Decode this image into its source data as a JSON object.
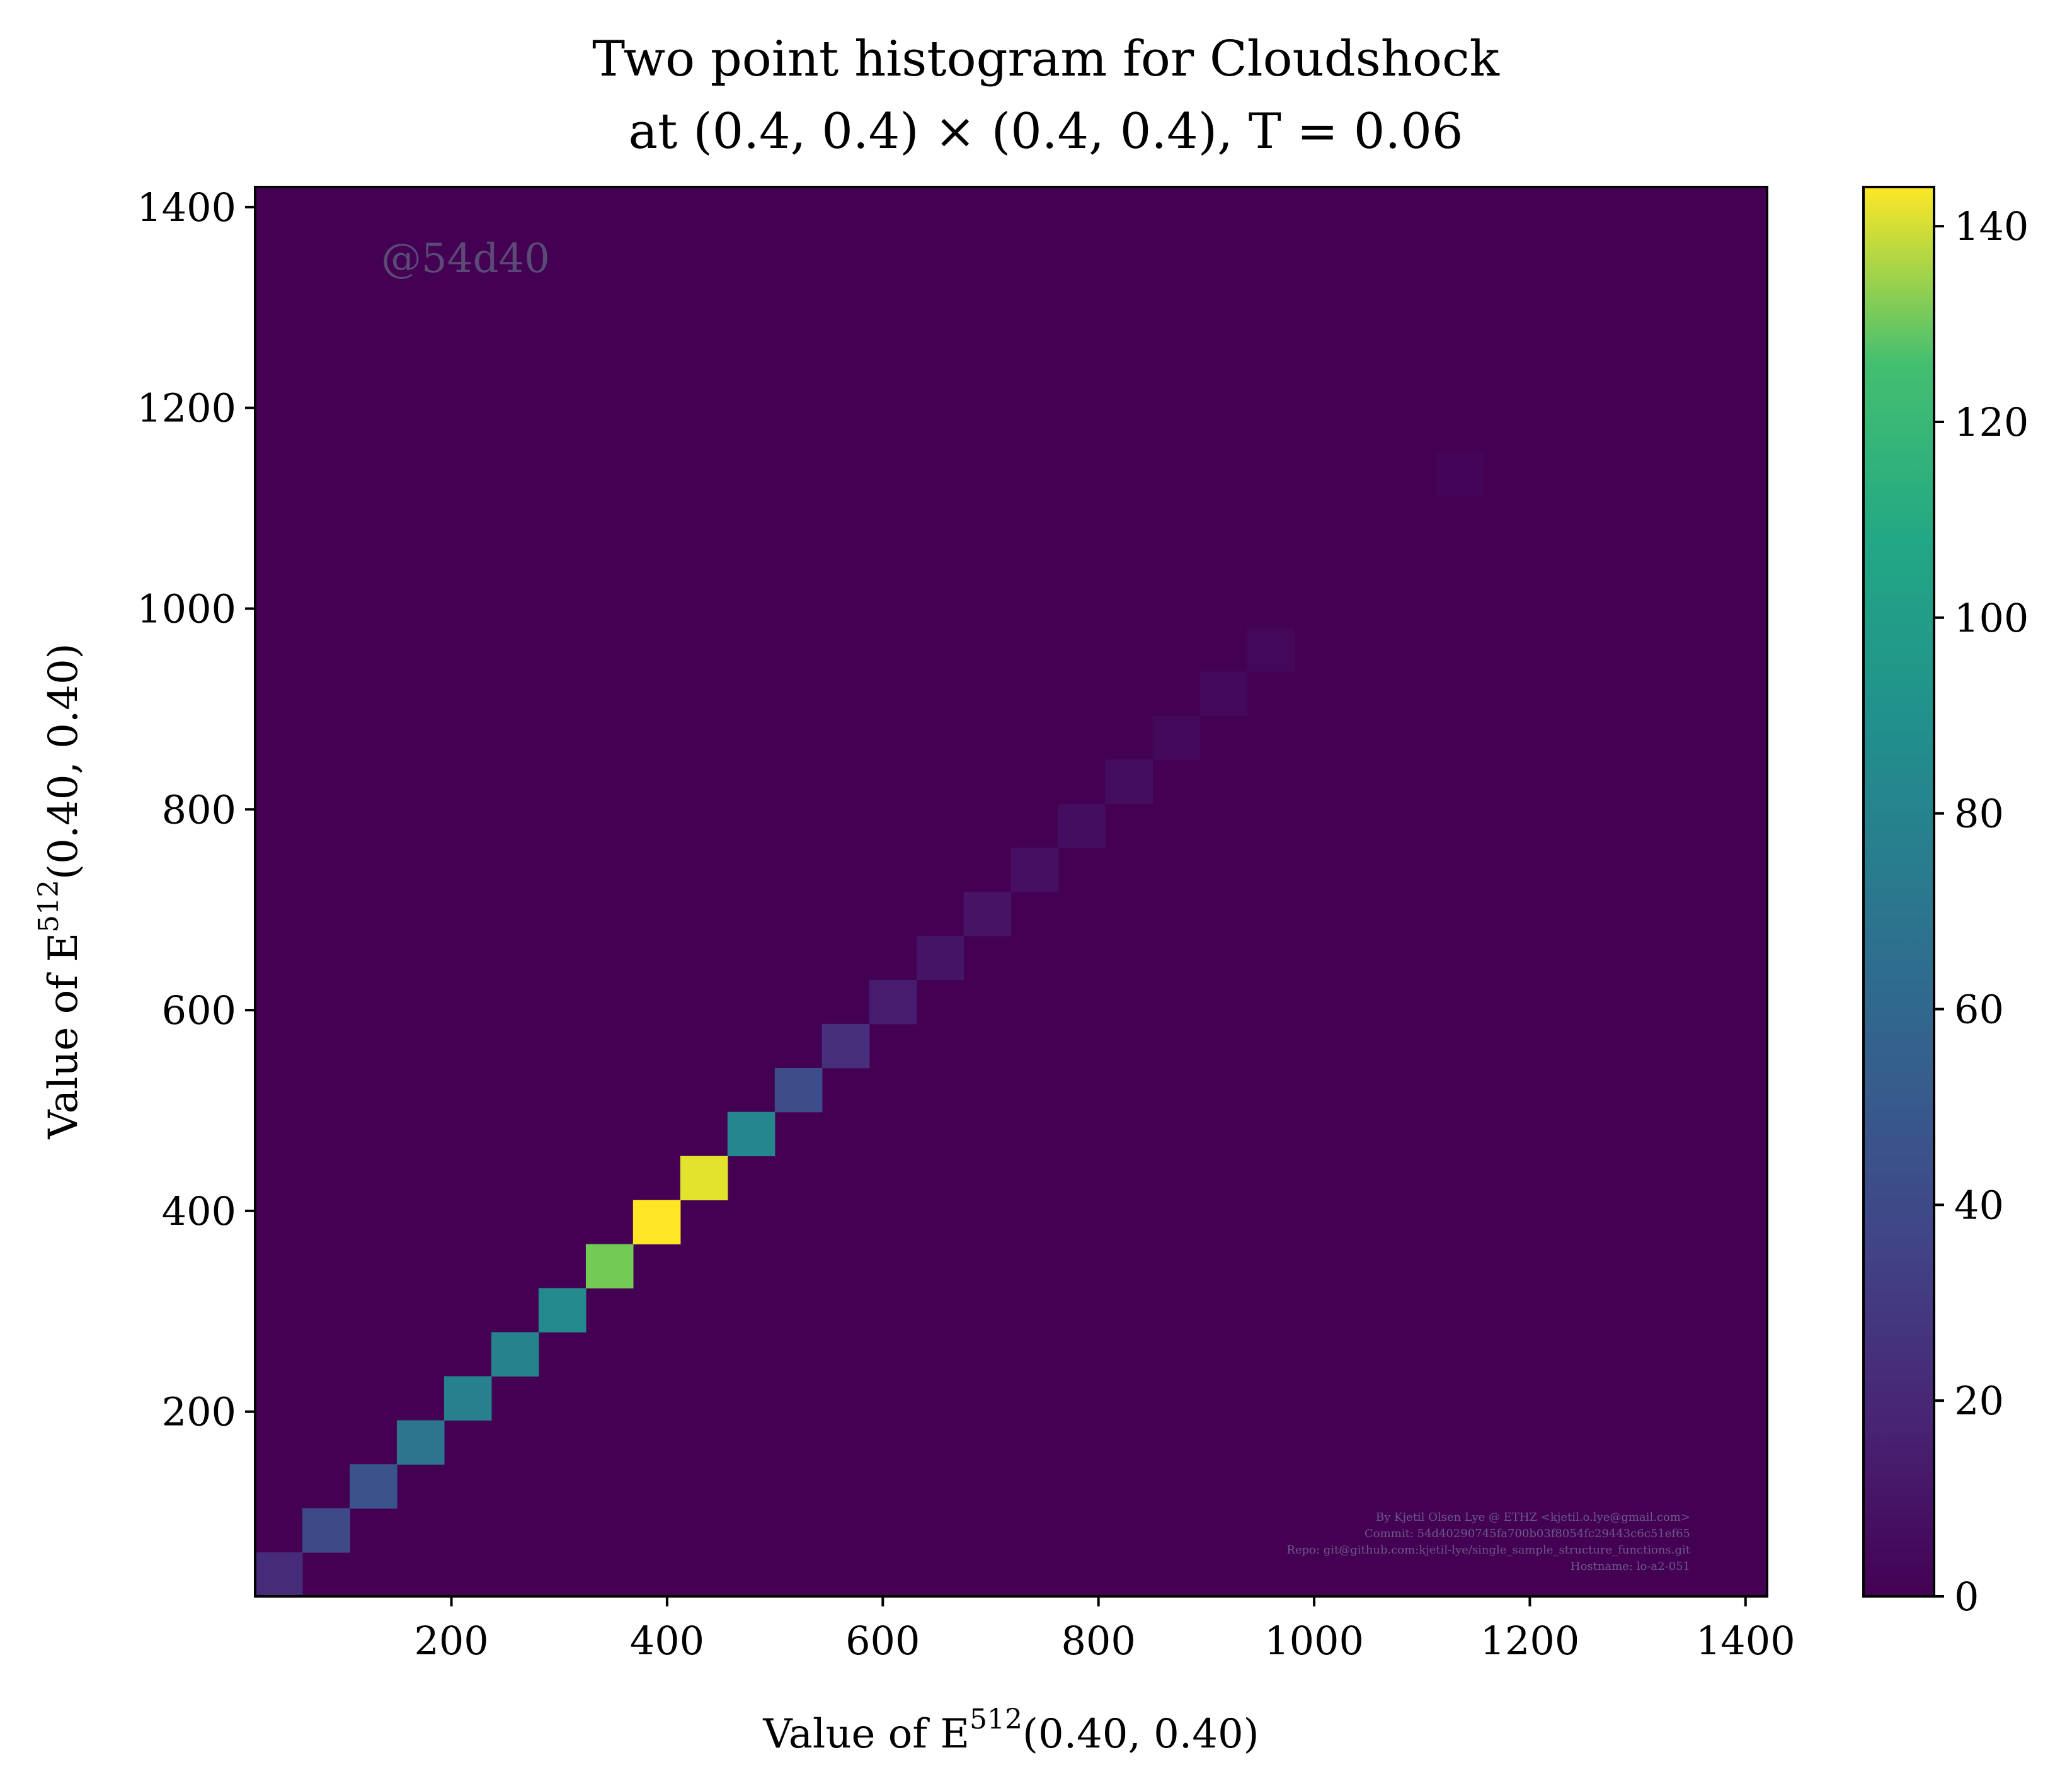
{
  "chart_data": {
    "type": "heatmap",
    "title_line1": "Two point histogram for Cloudshock",
    "title_line2": "at (0.4, 0.4) × (0.4, 0.4), T = 0.06",
    "xlabel": "Value of E",
    "xlabel_sup": "512",
    "xlabel_tail": "(0.40, 0.40)",
    "ylabel": "Value of E",
    "ylabel_sup": "512",
    "ylabel_tail": "(0.40, 0.40)",
    "xlim": [
      18,
      1420
    ],
    "ylim": [
      16,
      1420
    ],
    "x_ticks": [
      200,
      400,
      600,
      800,
      1000,
      1200,
      1400
    ],
    "y_ticks": [
      200,
      400,
      600,
      800,
      1000,
      1200,
      1400
    ],
    "colorbar": {
      "range": [
        0,
        144
      ],
      "ticks": [
        0,
        20,
        40,
        60,
        80,
        100,
        120,
        140
      ],
      "colormap": "viridis"
    },
    "bin_width": 43.8,
    "cells": [
      {
        "x0": 18.0,
        "y0": 16.0,
        "count": 22
      },
      {
        "x0": 61.8,
        "y0": 59.9,
        "count": 40
      },
      {
        "x0": 105.6,
        "y0": 103.8,
        "count": 46
      },
      {
        "x0": 149.4,
        "y0": 147.6,
        "count": 70
      },
      {
        "x0": 193.2,
        "y0": 191.5,
        "count": 78
      },
      {
        "x0": 237.0,
        "y0": 235.4,
        "count": 80
      },
      {
        "x0": 280.8,
        "y0": 279.3,
        "count": 85
      },
      {
        "x0": 324.6,
        "y0": 323.1,
        "count": 132
      },
      {
        "x0": 368.4,
        "y0": 367.0,
        "count": 144
      },
      {
        "x0": 412.2,
        "y0": 410.9,
        "count": 142
      },
      {
        "x0": 456.0,
        "y0": 454.8,
        "count": 82
      },
      {
        "x0": 499.8,
        "y0": 498.6,
        "count": 42
      },
      {
        "x0": 543.6,
        "y0": 542.5,
        "count": 24
      },
      {
        "x0": 587.4,
        "y0": 586.4,
        "count": 14
      },
      {
        "x0": 631.2,
        "y0": 630.3,
        "count": 10
      },
      {
        "x0": 675.0,
        "y0": 674.1,
        "count": 9
      },
      {
        "x0": 718.8,
        "y0": 718.0,
        "count": 7
      },
      {
        "x0": 762.6,
        "y0": 761.9,
        "count": 6
      },
      {
        "x0": 806.4,
        "y0": 805.8,
        "count": 6
      },
      {
        "x0": 850.2,
        "y0": 849.6,
        "count": 4
      },
      {
        "x0": 894.0,
        "y0": 893.5,
        "count": 4
      },
      {
        "x0": 937.8,
        "y0": 937.4,
        "count": 3
      },
      {
        "x0": 1112.8,
        "y0": 1112.8,
        "count": 2
      }
    ]
  },
  "stamp": "@54d40",
  "footer": [
    "By Kjetil Olsen Lye @ ETHZ <kjetil.o.lye@gmail.com>",
    "Commit: 54d40290745fa700b03f8054fc29443c6c51ef65",
    "Repo: git@github.com:kjetil-lye/single_sample_structure_functions.git",
    "Hostname: lo-a2-051"
  ]
}
